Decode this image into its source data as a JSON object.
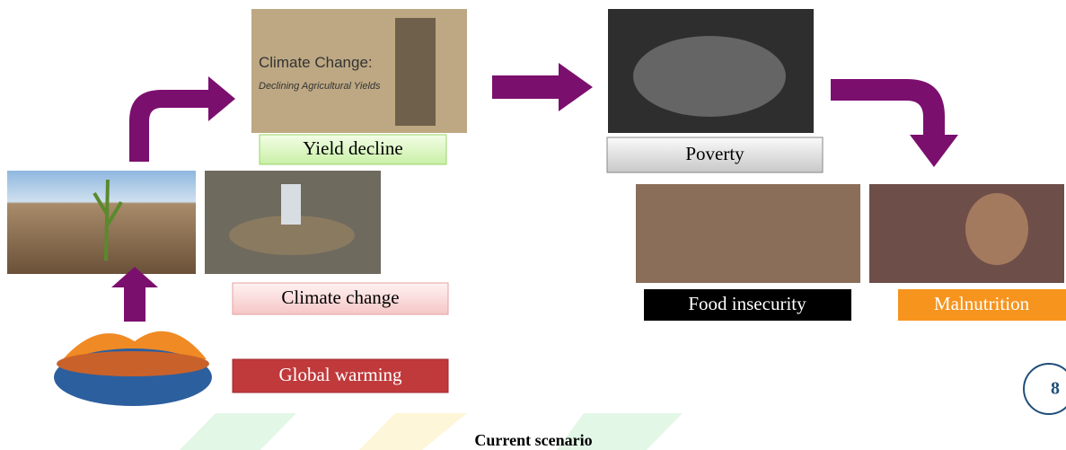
{
  "image_text": {
    "title": "Climate Change:",
    "subtitle": "Declining Agricultural Yields"
  },
  "labels": {
    "yield_decline": "Yield decline",
    "poverty": "Poverty",
    "climate_change": "Climate change",
    "global_warming": "Global warming",
    "food_insecurity": "Food  insecurity",
    "malnutrition": "Malnutrition"
  },
  "page_number": "8",
  "caption": "Current scenario"
}
